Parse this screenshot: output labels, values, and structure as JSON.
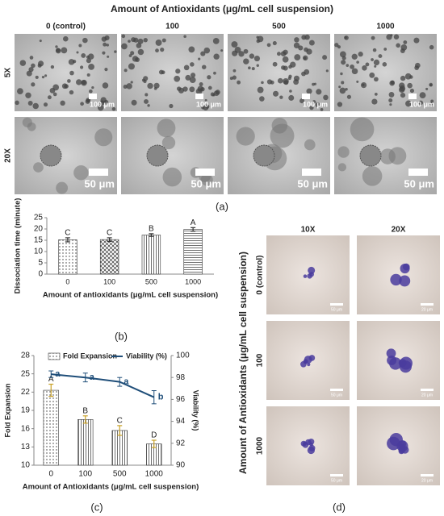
{
  "panel_a": {
    "title": "Amount of Antioxidants (μg/mL cell suspension)",
    "columns": [
      "0 (control)",
      "100",
      "500",
      "1000"
    ],
    "rows": [
      {
        "label": "5X",
        "scale_bar": "100 μm"
      },
      {
        "label": "20X",
        "scale_bar": "50 μm"
      }
    ],
    "label": "(a)"
  },
  "chart_data": [
    {
      "type": "bar",
      "ylabel": "Dissociation time (minute)",
      "xlabel": "Amount of antioxidants (μg/mL cell suspension)",
      "categories": [
        "0",
        "100",
        "500",
        "1000"
      ],
      "values": [
        15.2,
        15.3,
        17.3,
        19.8
      ],
      "errors": [
        0.9,
        0.8,
        0.6,
        0.8
      ],
      "annotations": [
        "C",
        "C",
        "B",
        "A"
      ],
      "hatches": [
        "dots",
        "cross",
        "vertical",
        "horizontal"
      ],
      "ylim": [
        0,
        25
      ],
      "yticks": [
        0,
        5,
        10,
        15,
        20,
        25
      ],
      "panel_label": "(b)"
    },
    {
      "type": "bar-line",
      "xlabel": "Amount of Antioxidants (μg/mL cell suspension)",
      "ylabel": "Fold Expansion",
      "y2label": "Viability (%)",
      "categories": [
        "0",
        "100",
        "500",
        "1000"
      ],
      "series": [
        {
          "name": "Fold Expansion",
          "type": "bar",
          "values": [
            22.3,
            17.5,
            15.7,
            13.5
          ],
          "errors": [
            1.0,
            0.6,
            0.8,
            0.6
          ],
          "annotations": [
            "A",
            "B",
            "C",
            "D"
          ],
          "hatches": [
            "dots",
            "vertical",
            "vertical",
            "vertical"
          ]
        },
        {
          "name": "Viability (%)",
          "type": "line",
          "axis": "y2",
          "color": "#1f4e79",
          "values": [
            98.3,
            98.0,
            97.6,
            96.2
          ],
          "errors": [
            0.3,
            0.4,
            0.4,
            0.6
          ],
          "annotations": [
            "a",
            "a",
            "a",
            "b"
          ]
        }
      ],
      "ylim": [
        10,
        28
      ],
      "yticks": [
        10,
        13,
        16,
        19,
        22,
        25,
        28
      ],
      "y2lim": [
        90,
        100
      ],
      "y2ticks": [
        90,
        92,
        94,
        96,
        98,
        100
      ],
      "legend": "top",
      "panel_label": "(c)"
    }
  ],
  "panel_d": {
    "title": "Amount of Antioxidants (μg/mL cell suspension)",
    "columns": [
      {
        "label": "10X",
        "scale_bar": "50 μm"
      },
      {
        "label": "20X",
        "scale_bar": "20 μm"
      }
    ],
    "rows": [
      "0 (control)",
      "100",
      "1000"
    ],
    "label": "(d)"
  }
}
